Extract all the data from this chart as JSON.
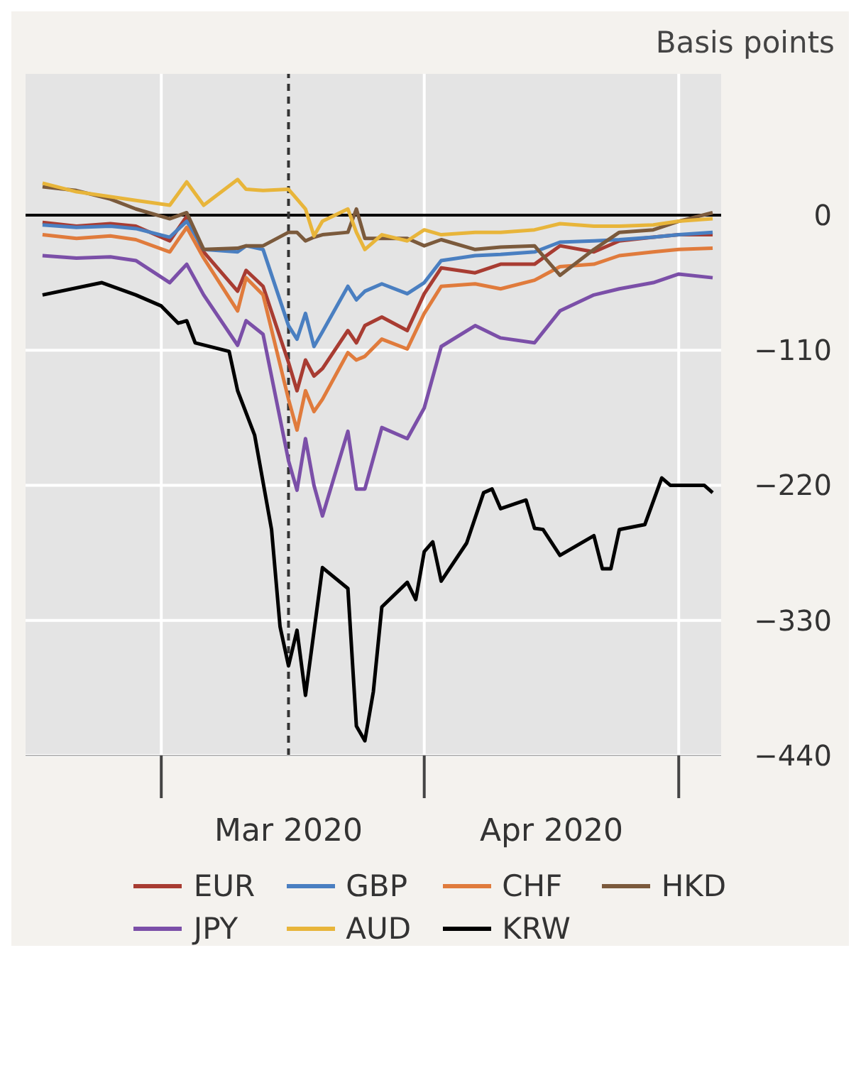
{
  "chart_data": {
    "type": "line",
    "ylabel": "Basis points",
    "x": [
      "2020-02-16",
      "2020-02-20",
      "2020-02-24",
      "2020-02-27",
      "2020-03-02",
      "2020-03-04",
      "2020-03-06",
      "2020-03-10",
      "2020-03-11",
      "2020-03-13",
      "2020-03-16",
      "2020-03-17",
      "2020-03-18",
      "2020-03-19",
      "2020-03-20",
      "2020-03-23",
      "2020-03-24",
      "2020-03-25",
      "2020-03-27",
      "2020-03-30",
      "2020-04-01",
      "2020-04-03",
      "2020-04-07",
      "2020-04-10",
      "2020-04-14",
      "2020-04-17",
      "2020-04-21",
      "2020-04-24",
      "2020-04-28",
      "2020-05-01",
      "2020-05-05"
    ],
    "series": [
      {
        "name": "EUR",
        "color": "#a83c32",
        "values": [
          -6,
          -9,
          -7,
          -9,
          -21,
          -1,
          -30,
          -62,
          -45,
          -58,
          -120,
          -143,
          -118,
          -131,
          -125,
          -94,
          -104,
          -90,
          -83,
          -94,
          -64,
          -43,
          -47,
          -40,
          -40,
          -25,
          -30,
          -21,
          -18,
          -16,
          -16
        ]
      },
      {
        "name": "GBP",
        "color": "#4a7fc1",
        "values": [
          -8,
          -10,
          -9,
          -11,
          -18,
          -5,
          -28,
          -30,
          -25,
          -28,
          -90,
          -101,
          -80,
          -107,
          -95,
          -58,
          -69,
          -62,
          -56,
          -64,
          -55,
          -37,
          -33,
          -32,
          -30,
          -22,
          -21,
          -20,
          -18,
          -16,
          -14
        ]
      },
      {
        "name": "CHF",
        "color": "#e07b3c",
        "values": [
          -16,
          -19,
          -17,
          -20,
          -30,
          -10,
          -35,
          -78,
          -51,
          -65,
          -150,
          -175,
          -143,
          -160,
          -150,
          -112,
          -118,
          -115,
          -101,
          -109,
          -80,
          -58,
          -56,
          -60,
          -53,
          -42,
          -40,
          -33,
          -30,
          -28,
          -27
        ]
      },
      {
        "name": "HKD",
        "color": "#7b5a3c",
        "values": [
          23,
          20,
          13,
          5,
          -3,
          2,
          -28,
          -27,
          -25,
          -25,
          -14,
          -14,
          -21,
          -18,
          -16,
          -14,
          5,
          -19,
          -19,
          -19,
          -25,
          -20,
          -28,
          -26,
          -25,
          -49,
          -28,
          -14,
          -12,
          -5,
          2
        ]
      },
      {
        "name": "JPY",
        "color": "#7b4fa8",
        "values": [
          -33,
          -35,
          -34,
          -37,
          -55,
          -40,
          -65,
          -106,
          -86,
          -97,
          -200,
          -224,
          -182,
          -220,
          -245,
          -176,
          -223,
          -223,
          -173,
          -182,
          -157,
          -107,
          -90,
          -100,
          -104,
          -78,
          -65,
          -60,
          -55,
          -48,
          -51
        ]
      },
      {
        "name": "AUD",
        "color": "#e8b53a",
        "values": [
          26,
          19,
          15,
          12,
          8,
          27,
          8,
          29,
          21,
          20,
          21,
          13,
          5,
          -17,
          -5,
          5,
          -14,
          -28,
          -16,
          -21,
          -12,
          -16,
          -14,
          -14,
          -12,
          -7,
          -9,
          -9,
          -8,
          -5,
          -3
        ]
      },
      {
        "name": "KRW",
        "color": "#000000",
        "x": [
          "2020-02-16",
          "2020-02-23",
          "2020-02-27",
          "2020-03-01",
          "2020-03-03",
          "2020-03-04",
          "2020-03-05",
          "2020-03-09",
          "2020-03-10",
          "2020-03-12",
          "2020-03-14",
          "2020-03-15",
          "2020-03-16",
          "2020-03-17",
          "2020-03-18",
          "2020-03-20",
          "2020-03-23",
          "2020-03-24",
          "2020-03-25",
          "2020-03-26",
          "2020-03-27",
          "2020-03-30",
          "2020-03-31",
          "2020-04-01",
          "2020-04-02",
          "2020-04-03",
          "2020-04-06",
          "2020-04-08",
          "2020-04-09",
          "2020-04-10",
          "2020-04-13",
          "2020-04-14",
          "2020-04-15",
          "2020-04-17",
          "2020-04-21",
          "2020-04-22",
          "2020-04-23",
          "2020-04-24",
          "2020-04-27",
          "2020-04-29",
          "2020-04-30",
          "2020-05-04",
          "2020-05-05"
        ],
        "values": [
          -65,
          -55,
          -65,
          -74,
          -88,
          -86,
          -104,
          -111,
          -143,
          -179,
          -256,
          -335,
          -367,
          -338,
          -391,
          -287,
          -304,
          -416,
          -428,
          -388,
          -319,
          -299,
          -313,
          -274,
          -266,
          -298,
          -267,
          -226,
          -223,
          -239,
          -232,
          -255,
          -256,
          -277,
          -261,
          -288,
          -288,
          -256,
          -252,
          -214,
          -220,
          -220,
          -226
        ]
      }
    ],
    "xlim": [
      "2020-02-14",
      "2020-05-06"
    ],
    "xticks": [
      {
        "value": "2020-03-01",
        "label": null
      },
      {
        "value": "2020-03-16",
        "label": "Mar 2020"
      },
      {
        "value": "2020-04-01",
        "label": null
      },
      {
        "value": "2020-04-16",
        "label": "Apr 2020"
      },
      {
        "value": "2020-05-01",
        "label": null
      }
    ],
    "ylim": [
      -440,
      115
    ],
    "yticks": [
      {
        "value": -440,
        "label": "−440"
      },
      {
        "value": -330,
        "label": "−330"
      },
      {
        "value": -220,
        "label": "−220"
      },
      {
        "value": -110,
        "label": "−110"
      },
      0
    ],
    "ref_lines": [
      {
        "axis": "y",
        "value": 0,
        "label": null,
        "color": "#000000",
        "line_style": "solid"
      },
      {
        "axis": "x",
        "value": "2020-03-16",
        "label": null,
        "color": "#333333",
        "line_style": "dashed"
      }
    ],
    "grid": true,
    "legend": "bottom",
    "marker": "none",
    "line_style": "solid"
  }
}
